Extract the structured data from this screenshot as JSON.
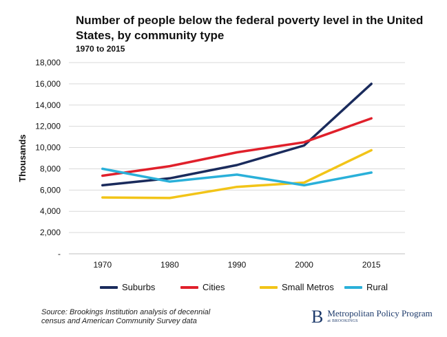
{
  "title": "Number of people below the federal poverty level in the United States, by community type",
  "subtitle": "1970 to 2015",
  "source": "Source: Brookings Institution analysis of decennial census and American Community Survey data",
  "brand": {
    "logo": "B",
    "name": "Metropolitan Policy Program",
    "sub": "at BROOKINGS"
  },
  "chart_data": {
    "type": "line",
    "title": "Number of people below the federal poverty level in the United States, by community type",
    "subtitle": "1970 to 2015",
    "xlabel": "",
    "ylabel": "Thousands",
    "categories": [
      "1970",
      "1980",
      "1990",
      "2000",
      "2015"
    ],
    "ylim": [
      0,
      18000
    ],
    "yticks": [
      0,
      2000,
      4000,
      6000,
      8000,
      10000,
      12000,
      14000,
      16000,
      18000
    ],
    "ytick_labels": [
      "-",
      "2,000",
      "4,000",
      "6,000",
      "8,000",
      "10,000",
      "12,000",
      "14,000",
      "16,000",
      "18,000"
    ],
    "grid": true,
    "legend_position": "bottom",
    "series": [
      {
        "name": "Suburbs",
        "color": "#1a2b5c",
        "values": [
          6450,
          7100,
          8350,
          10200,
          16000
        ]
      },
      {
        "name": "Cities",
        "color": "#e0202b",
        "values": [
          7350,
          8250,
          9550,
          10500,
          12750
        ]
      },
      {
        "name": "Small Metros",
        "color": "#f2c418",
        "values": [
          5300,
          5250,
          6300,
          6700,
          9750
        ]
      },
      {
        "name": "Rural",
        "color": "#2ab0d9",
        "values": [
          8000,
          6800,
          7450,
          6450,
          7650
        ]
      }
    ]
  }
}
